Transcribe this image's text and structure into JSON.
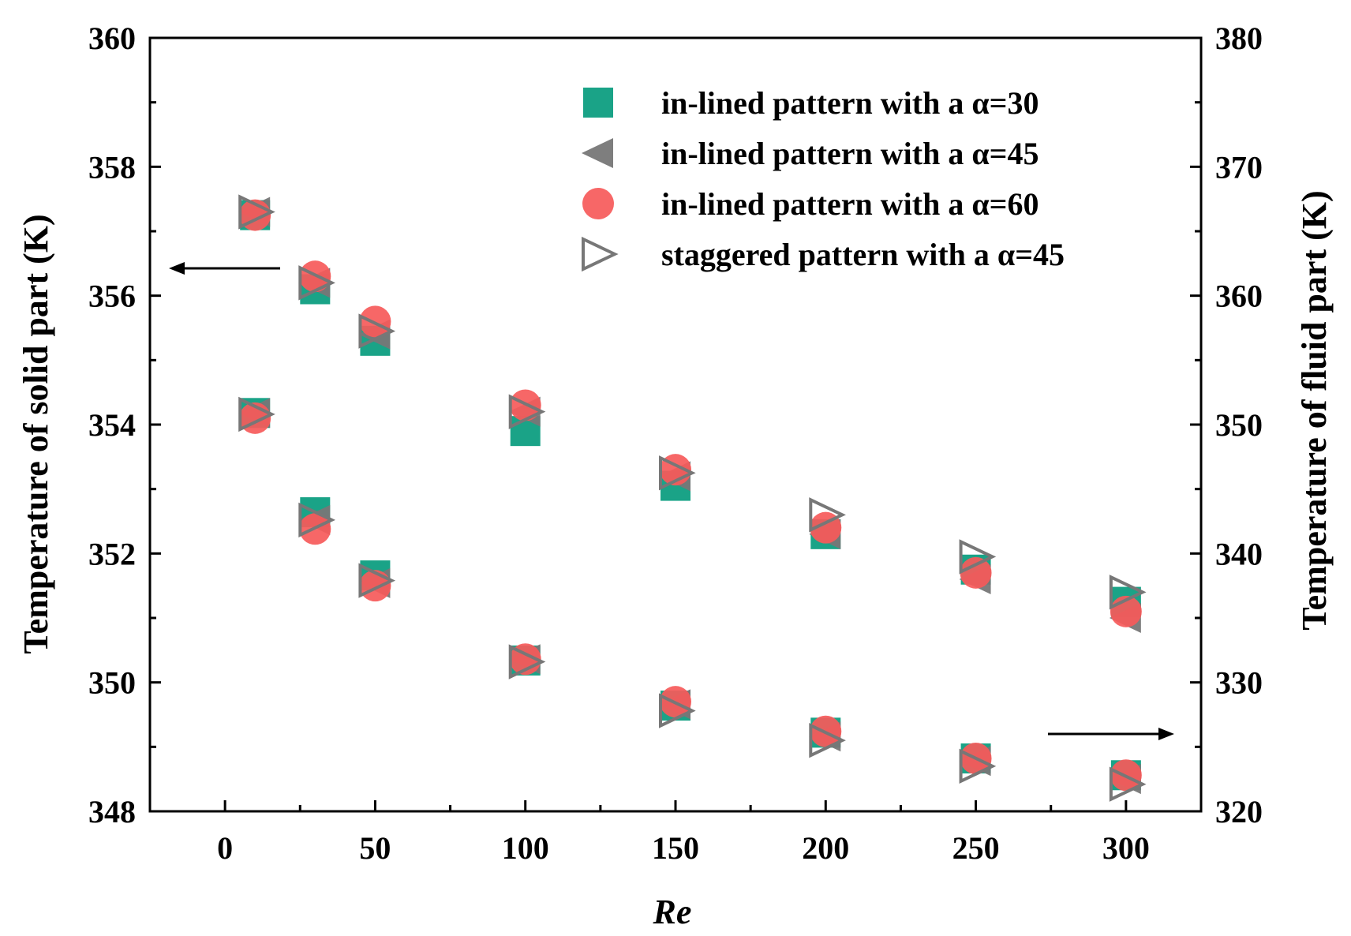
{
  "chart_data": {
    "type": "scatter",
    "xlabel": "Re",
    "ylabel_left": "Temperature of solid part (K)",
    "ylabel_right": "Temperature of fluid part (K)",
    "xlim": [
      -25,
      325
    ],
    "ylim_left": [
      348,
      360
    ],
    "ylim_right": [
      320,
      380
    ],
    "x_ticks": [
      0,
      50,
      100,
      150,
      200,
      250,
      300
    ],
    "y_ticks_left": [
      348,
      350,
      352,
      354,
      356,
      358,
      360
    ],
    "y_ticks_right": [
      320,
      330,
      340,
      350,
      360,
      370,
      380
    ],
    "legend_position": "top-right",
    "arrows": [
      {
        "points_to": "left-axis",
        "applies_to": "solid"
      },
      {
        "points_to": "right-axis",
        "applies_to": "fluid"
      }
    ],
    "series": [
      {
        "name": "in-lined pattern with a α=30",
        "marker": "square",
        "color": "#1aa387",
        "solid": {
          "x": [
            10,
            30,
            50,
            100,
            150
          ],
          "y": [
            357.25,
            356.1,
            355.3,
            353.9,
            353.05
          ]
        },
        "fluid": {
          "x": [
            10,
            30,
            50,
            100,
            150,
            200,
            250,
            300
          ],
          "y": [
            350.9,
            343.2,
            338.3,
            331.7,
            328.2,
            326.1,
            324.1,
            322.8
          ]
        }
      },
      {
        "name": "in-lined pattern with a α=45",
        "marker": "triangle-left",
        "color": "#777777",
        "solid": {
          "x": [
            10,
            30,
            50,
            100,
            150
          ],
          "y": [
            357.3,
            356.2,
            355.4,
            354.2,
            353.2
          ]
        },
        "fluid": {
          "x": [
            10,
            30,
            50,
            100,
            150,
            200,
            250,
            300
          ],
          "y": [
            350.9,
            342.6,
            337.7,
            331.8,
            328.3,
            325.8,
            323.9,
            322.5
          ]
        }
      },
      {
        "name": "in-lined pattern with a α=60",
        "marker": "circle",
        "color": "#f65a5a",
        "solid": {
          "x": [
            10,
            30,
            50,
            100,
            150
          ],
          "y": [
            357.25,
            356.3,
            355.6,
            354.3,
            353.3
          ]
        },
        "fluid": {
          "x": [
            10,
            30,
            50,
            100,
            150,
            200,
            250,
            300
          ],
          "y": [
            350.5,
            341.9,
            337.5,
            331.8,
            328.5,
            326.2,
            324.1,
            322.8
          ]
        }
      },
      {
        "name": "staggered pattern with a α=45",
        "marker": "triangle-right-open",
        "color": "#777777",
        "solid": {
          "x": [
            10,
            30,
            50,
            100,
            150
          ],
          "y": [
            357.3,
            356.2,
            355.45,
            354.2,
            353.25
          ]
        },
        "fluid": {
          "x": [
            10,
            30,
            50,
            100,
            150,
            200,
            250,
            300
          ],
          "y": [
            350.8,
            342.6,
            337.9,
            331.6,
            327.8,
            325.5,
            323.5,
            322.1
          ]
        }
      }
    ],
    "extra_solid_points": {
      "note_series": [
        0,
        1,
        2,
        3
      ],
      "x": [
        200,
        250,
        300
      ],
      "y_by_series": [
        [
          352.3,
          351.75,
          351.25
        ],
        [
          352.3,
          351.6,
          351.0
        ],
        [
          352.4,
          351.7,
          351.1
        ],
        [
          352.6,
          351.95,
          351.4
        ]
      ]
    }
  }
}
